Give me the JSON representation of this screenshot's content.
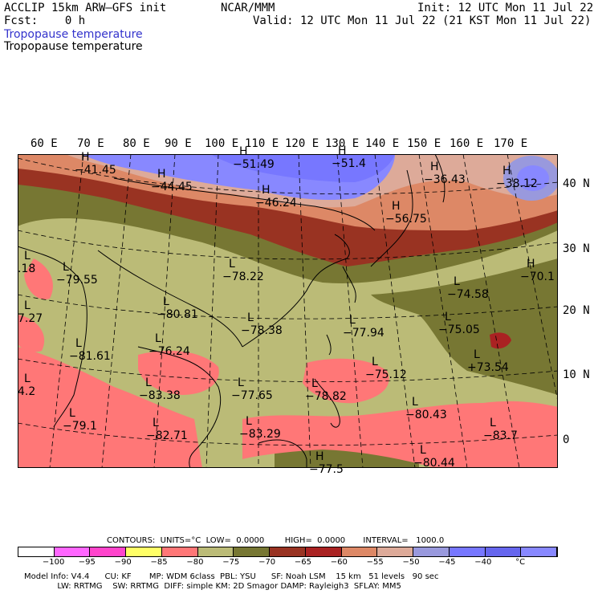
{
  "header": {
    "model": "ACCLIP 15km ARW–GFS init",
    "center": "NCAR/MMM",
    "init": "Init: 12 UTC Mon 11 Jul 22",
    "fcst": "Fcst:    0 h",
    "valid": "Valid: 12 UTC Mon 11 Jul 22 (21 KST Mon 11 Jul 22)",
    "field_blue": "Tropopause temperature",
    "field_black": "Tropopause temperature",
    "blue_color": "#3333cc"
  },
  "lon_labels": [
    "60 E",
    "70 E",
    "80 E",
    "90 E",
    "100 E",
    "110 E",
    "120 E",
    "130 E",
    "140 E",
    "150 E",
    "160 E",
    "170 E"
  ],
  "lat_labels": [
    "40 N",
    "30 N",
    "20 N",
    "10 N",
    "0"
  ],
  "map_values": [
    {
      "type": "H",
      "value": "−41.45"
    },
    {
      "type": "H",
      "value": "−44.45"
    },
    {
      "type": "H",
      "value": "−51.49"
    },
    {
      "type": "H",
      "value": "−51.4"
    },
    {
      "type": "H",
      "value": "−46.24"
    },
    {
      "type": "H",
      "value": "−36.43"
    },
    {
      "type": "H",
      "value": "−38.12"
    },
    {
      "type": "H",
      "value": "−56.75"
    },
    {
      "type": "L",
      "value": ".18"
    },
    {
      "type": "L",
      "value": "−79.55"
    },
    {
      "type": "L",
      "value": "−78.22"
    },
    {
      "type": "H",
      "value": "−70.1"
    },
    {
      "type": "L",
      "value": "−74.58"
    },
    {
      "type": "L",
      "value": "−80.81"
    },
    {
      "type": "L",
      "value": "7.27"
    },
    {
      "type": "L",
      "value": "−78.38"
    },
    {
      "type": "L",
      "value": "−77.94"
    },
    {
      "type": "L",
      "value": "−75.05"
    },
    {
      "type": "L",
      "value": "−81.61"
    },
    {
      "type": "L",
      "value": "−76.24"
    },
    {
      "type": "L",
      "value": "−75.12"
    },
    {
      "type": "L",
      "value": "+73.54"
    },
    {
      "type": "L",
      "value": "4.2"
    },
    {
      "type": "L",
      "value": "−83.38"
    },
    {
      "type": "L",
      "value": "−77.65"
    },
    {
      "type": "L",
      "value": "−78.82"
    },
    {
      "type": "L",
      "value": "−80.43"
    },
    {
      "type": "L",
      "value": "−79.1"
    },
    {
      "type": "L",
      "value": "−82.71"
    },
    {
      "type": "L",
      "value": "−83.29"
    },
    {
      "type": "L",
      "value": "−83.7"
    },
    {
      "type": "L",
      "value": "−80.44"
    },
    {
      "type": "H",
      "value": "−77.5"
    }
  ],
  "contours_line": "CONTOURS:  UNITS=°C  LOW=  0.0000        HIGH=  0.0000       INTERVAL=   1000.0",
  "colorbar": {
    "colors": [
      "#ffffff",
      "#ff66ff",
      "#ff44cc",
      "#ffff66",
      "#ff7777",
      "#bbbb77",
      "#777733",
      "#993322",
      "#aa2222",
      "#dd8866",
      "#ddaa99",
      "#9999dd",
      "#7777ff",
      "#6666ee",
      "#8888ff"
    ],
    "labels": [
      "−100",
      "−95",
      "−90",
      "−85",
      "−80",
      "−75",
      "−70",
      "−65",
      "−60",
      "−55",
      "−50",
      "−45",
      "−40",
      "°C"
    ]
  },
  "footer": {
    "line1": "Model Info: V4.4      CU: KF       MP: WDM 6class  PBL: YSU      SF: Noah LSM    15 km   51 levels   90 sec",
    "line2": "             LW: RRTMG    SW: RRTMG  DIFF: simple KM: 2D Smagor DAMP: Rayleigh3  SFLAY: MM5"
  }
}
